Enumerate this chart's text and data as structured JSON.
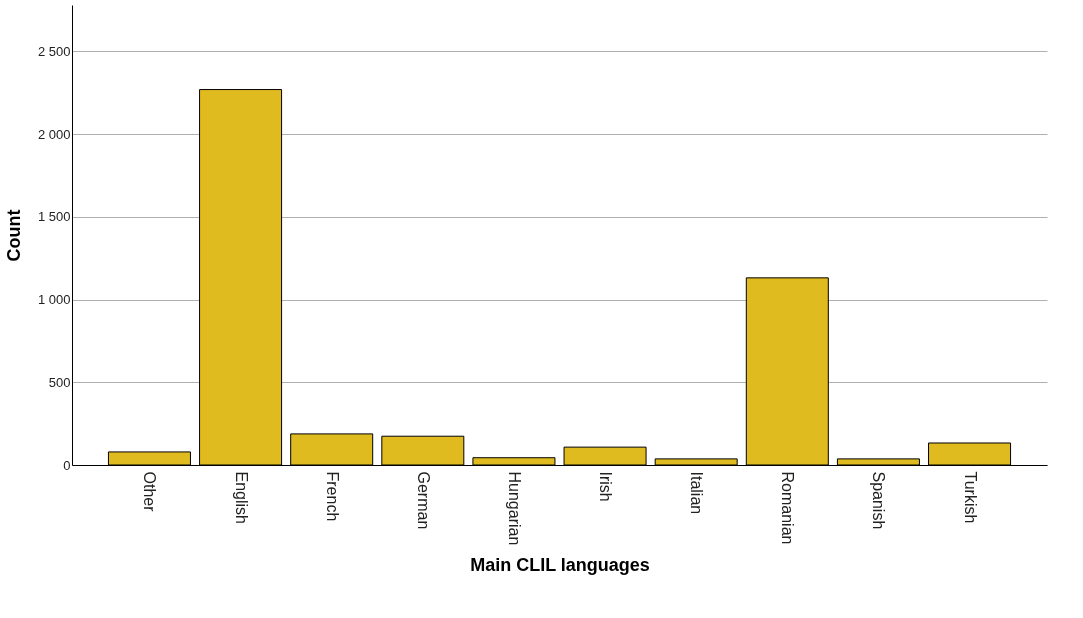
{
  "chart_data": {
    "type": "bar",
    "xlabel": "Main CLIL languages",
    "ylabel": "Count",
    "categories": [
      "Other",
      "English",
      "French",
      "German",
      "Hungarian",
      "Irish",
      "Italian",
      "Romanian",
      "Spanish",
      "Turkish"
    ],
    "values": [
      79,
      2269,
      188,
      174,
      44,
      108,
      37,
      1131,
      37,
      133
    ],
    "color": "#e0bb1f",
    "ylim": [
      0,
      2780
    ],
    "yticks": [
      0,
      {
        "value": 500,
        "label": "500"
      },
      {
        "value": 1000,
        "label": "1 000"
      },
      {
        "value": 1500,
        "label": "1 500"
      },
      {
        "value": 2000,
        "label": "2 000"
      },
      {
        "value": 2500,
        "label": "2 500"
      }
    ],
    "grid": "y"
  }
}
